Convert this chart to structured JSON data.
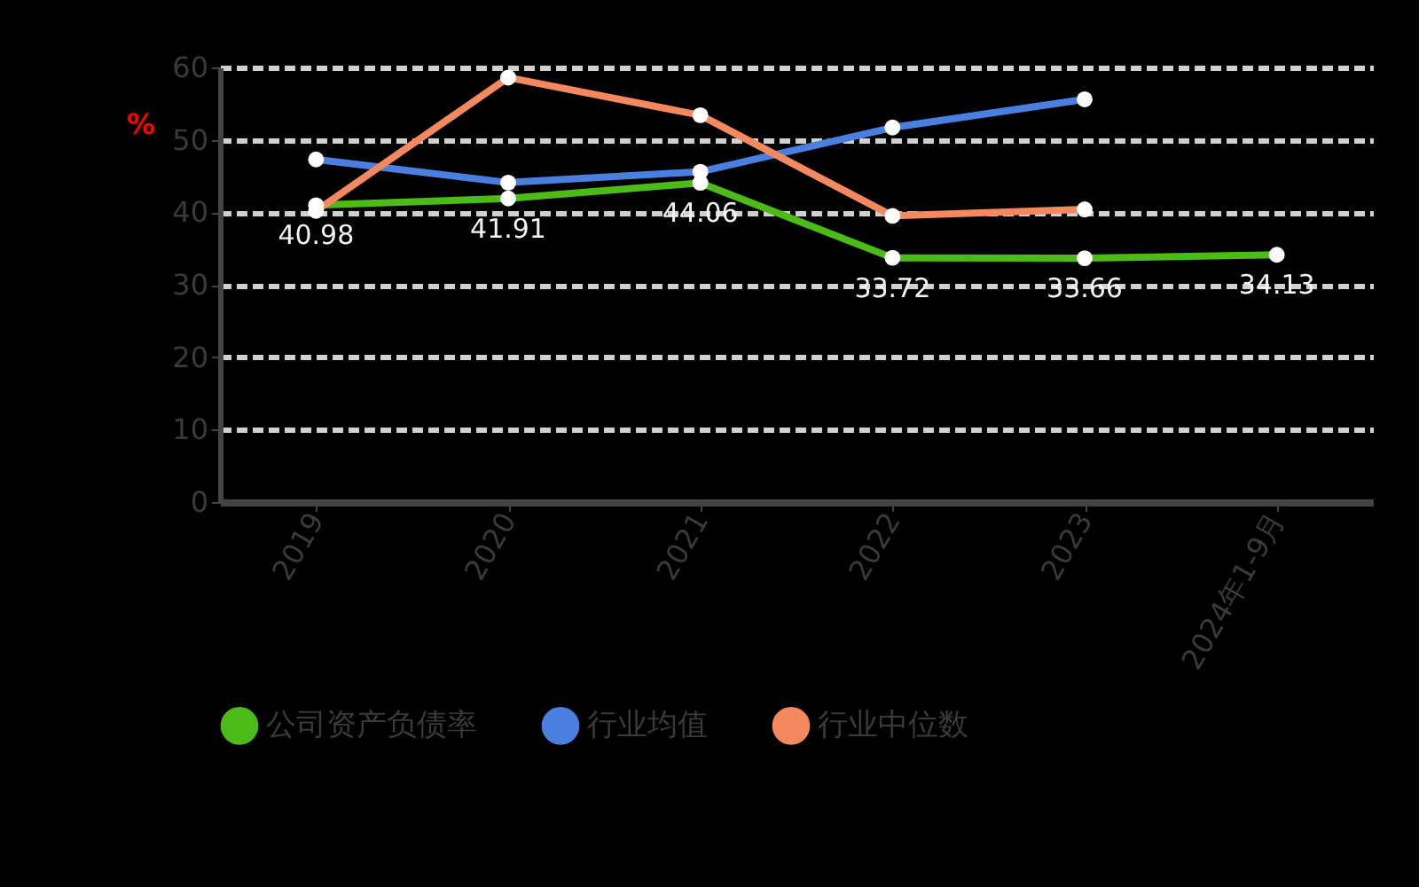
{
  "chart_data": {
    "type": "line",
    "ylabel": "%",
    "categories": [
      "2019",
      "2020",
      "2021",
      "2022",
      "2023",
      "2024年1-9月"
    ],
    "series": [
      {
        "name": "公司资产负债率",
        "color": "#4cbb17",
        "values": [
          40.98,
          41.91,
          44.06,
          33.72,
          33.66,
          34.13
        ],
        "value_labels": [
          "40.98",
          "41.91",
          "44.06",
          "33.72",
          "33.66",
          "34.13"
        ]
      },
      {
        "name": "行业均值",
        "color": "#4a7fe0",
        "values": [
          47.3,
          44.1,
          45.6,
          51.7,
          55.6,
          null
        ]
      },
      {
        "name": "行业中位数",
        "color": "#f4895f",
        "values": [
          40.2,
          58.6,
          53.4,
          39.5,
          40.4,
          null
        ]
      }
    ],
    "ylim": [
      0,
      60
    ],
    "yticks": [
      0,
      10,
      20,
      30,
      40,
      50,
      60
    ],
    "grid": "y",
    "legend": "bottom",
    "marker": "circle",
    "line_style": "solid"
  }
}
